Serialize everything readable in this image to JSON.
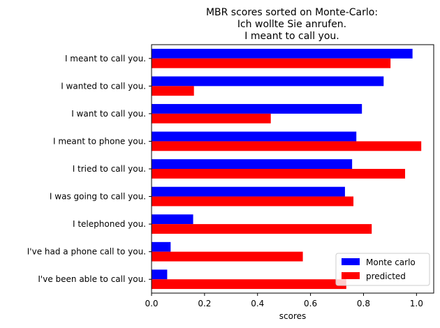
{
  "chart_data": {
    "type": "bar",
    "orientation": "horizontal",
    "title": [
      "MBR scores sorted on Monte-Carlo:",
      "Ich wollte Sie anrufen.",
      "I meant to call you."
    ],
    "xlabel": "scores",
    "ylabel": "",
    "xlim": [
      0,
      1.065
    ],
    "xticks": [
      "0.0",
      "0.2",
      "0.4",
      "0.6",
      "0.8",
      "1.0"
    ],
    "categories": [
      "I meant to call you.",
      "I wanted to call you.",
      "I want to call you.",
      "I meant to phone you.",
      "I tried to call you.",
      "I was going to call you.",
      "I telephoned you.",
      "I've had a phone call to you.",
      "I've been able to call you."
    ],
    "series": [
      {
        "name": "Monte carlo",
        "color": "#0000ff",
        "values": [
          0.985,
          0.876,
          0.794,
          0.773,
          0.757,
          0.73,
          0.157,
          0.072,
          0.059
        ]
      },
      {
        "name": "predicted",
        "color": "#ff0000",
        "values": [
          0.902,
          0.16,
          0.45,
          1.018,
          0.957,
          0.762,
          0.831,
          0.571,
          0.735
        ]
      }
    ],
    "grid": false,
    "legend": "lower-right"
  }
}
